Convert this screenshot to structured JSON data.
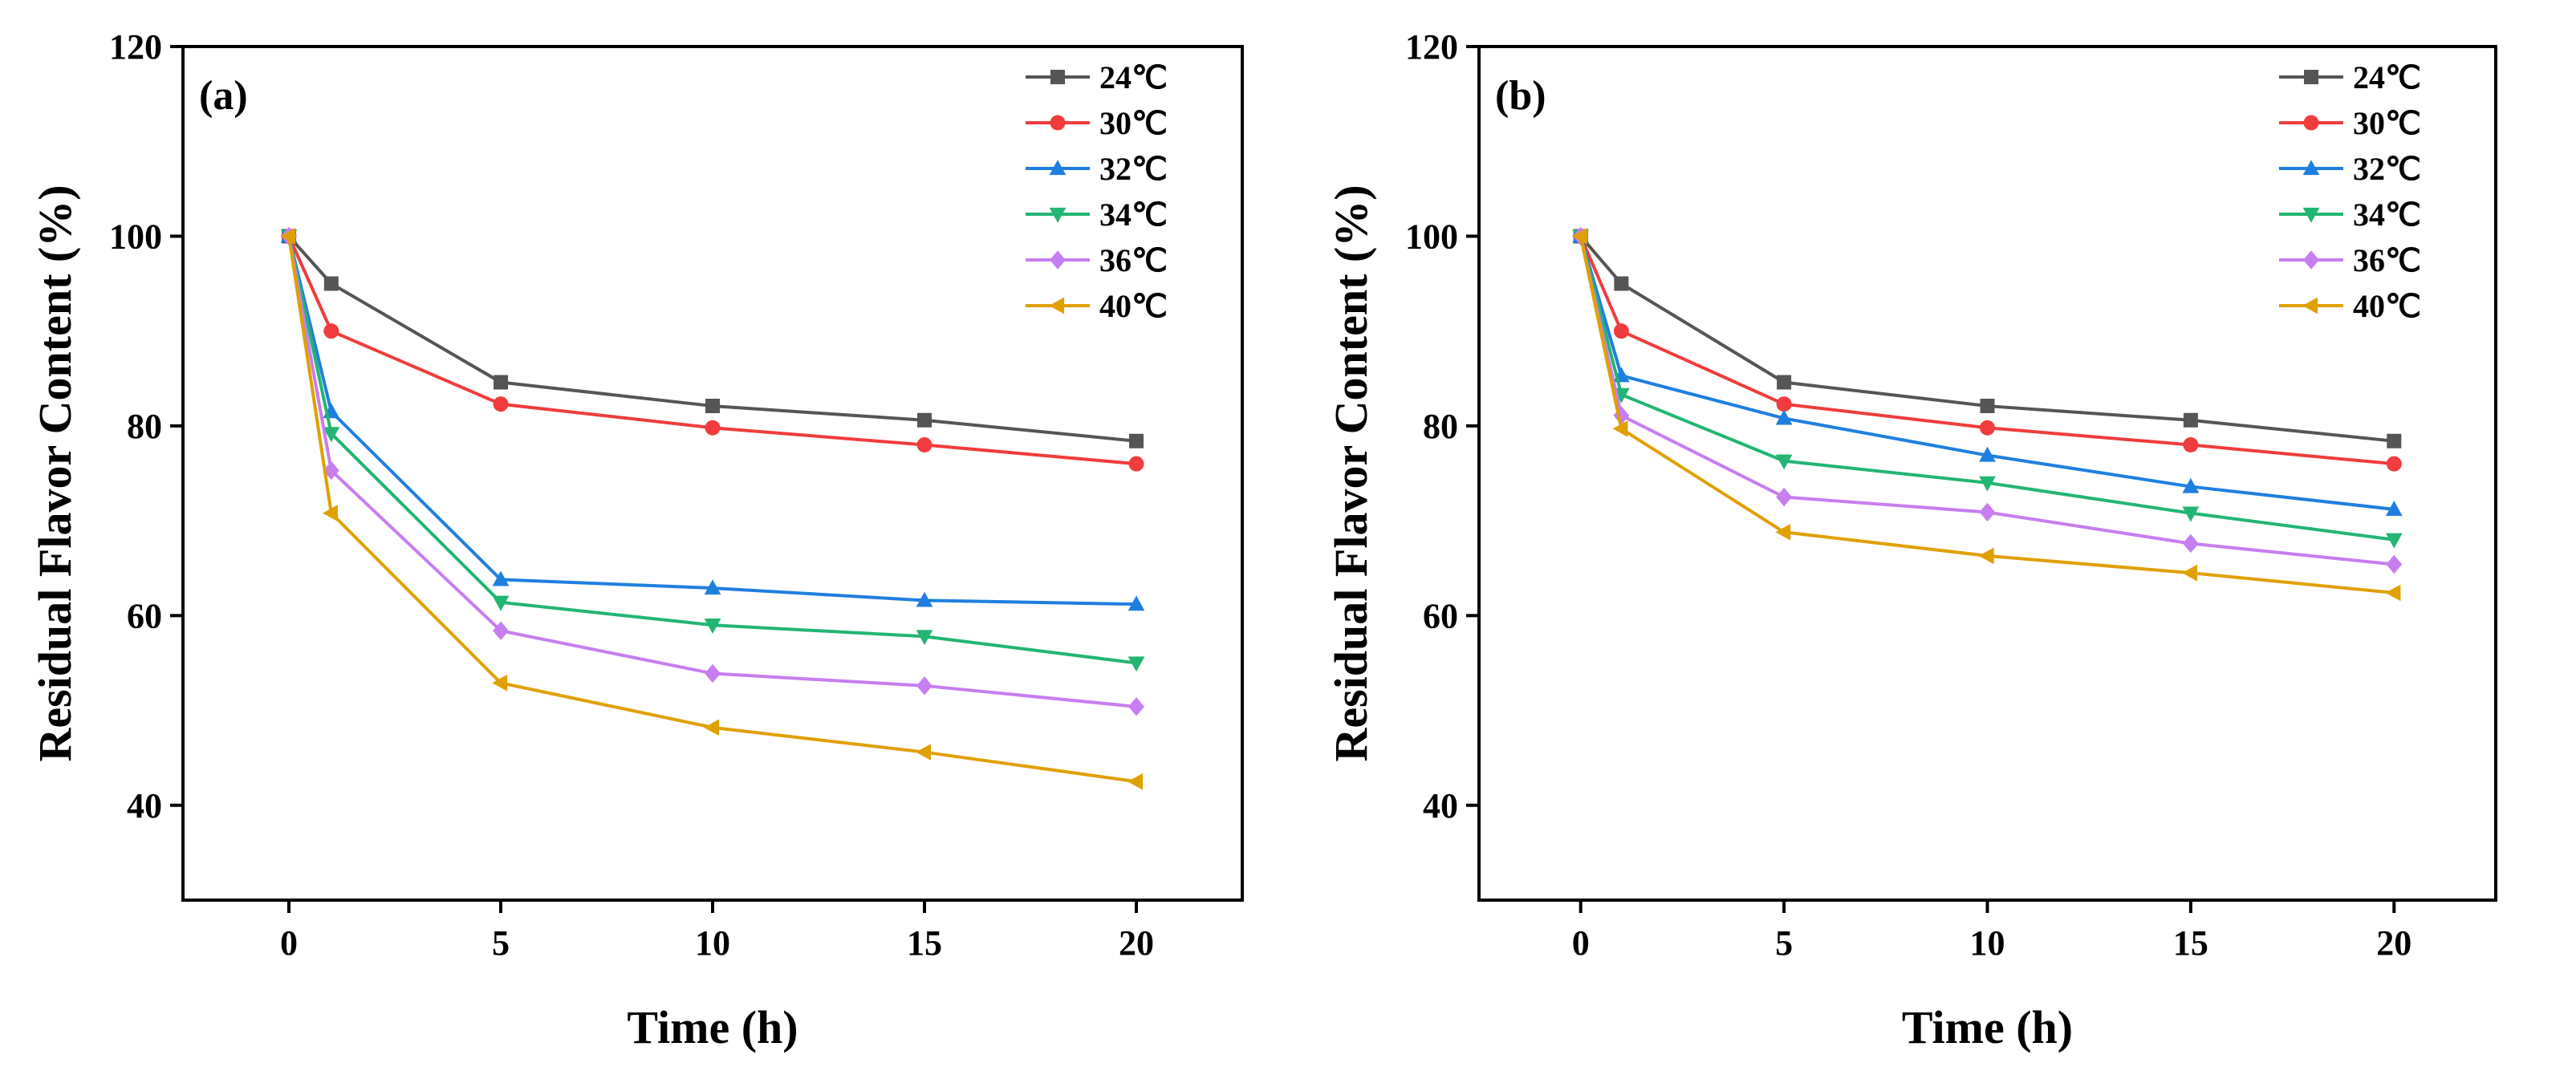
{
  "chart_data": [
    {
      "type": "line",
      "panel_label": "(a)",
      "xlabel": "Time (h)",
      "ylabel": "Residual Flavor Content (%)",
      "xlim": [
        -2.5,
        22.5
      ],
      "ylim": [
        30,
        120
      ],
      "xticks": [
        0,
        5,
        10,
        15,
        20
      ],
      "yticks": [
        40,
        60,
        80,
        100,
        120
      ],
      "x": [
        0,
        1,
        5,
        10,
        15,
        20
      ],
      "legend_position": "top-right",
      "series": [
        {
          "name": "24℃",
          "color": "#555555",
          "marker": "square",
          "values": [
            100,
            95.0,
            84.6,
            82.1,
            80.6,
            78.4
          ]
        },
        {
          "name": "30℃",
          "color": "#f03c3c",
          "marker": "circle",
          "values": [
            100,
            90.0,
            82.3,
            79.8,
            78.0,
            76.0
          ]
        },
        {
          "name": "32℃",
          "color": "#1f7fe0",
          "marker": "triangle-up",
          "values": [
            100,
            81.5,
            63.8,
            62.9,
            61.6,
            61.2
          ]
        },
        {
          "name": "34℃",
          "color": "#22b573",
          "marker": "triangle-down",
          "values": [
            100,
            79.2,
            61.4,
            59.0,
            57.8,
            55.0
          ]
        },
        {
          "name": "36℃",
          "color": "#c77ef0",
          "marker": "diamond",
          "values": [
            100,
            75.3,
            58.4,
            53.9,
            52.6,
            50.4
          ]
        },
        {
          "name": "40℃",
          "color": "#e0a000",
          "marker": "triangle-left",
          "values": [
            100,
            70.8,
            52.9,
            48.2,
            45.6,
            42.5
          ]
        }
      ]
    },
    {
      "type": "line",
      "panel_label": "(b)",
      "xlabel": "Time (h)",
      "ylabel": "Residual Flavor Content (%)",
      "xlim": [
        -2.5,
        22.5
      ],
      "ylim": [
        30,
        120
      ],
      "xticks": [
        0,
        5,
        10,
        15,
        20
      ],
      "yticks": [
        40,
        60,
        80,
        100,
        120
      ],
      "x": [
        0,
        1,
        5,
        10,
        15,
        20
      ],
      "legend_position": "top-right",
      "series": [
        {
          "name": "24℃",
          "color": "#555555",
          "marker": "square",
          "values": [
            100,
            95.0,
            84.6,
            82.1,
            80.6,
            78.4
          ]
        },
        {
          "name": "30℃",
          "color": "#f03c3c",
          "marker": "circle",
          "values": [
            100,
            90.0,
            82.3,
            79.8,
            78.0,
            76.0
          ]
        },
        {
          "name": "32℃",
          "color": "#1f7fe0",
          "marker": "triangle-up",
          "values": [
            100,
            85.3,
            80.8,
            76.9,
            73.6,
            71.2
          ]
        },
        {
          "name": "34℃",
          "color": "#22b573",
          "marker": "triangle-down",
          "values": [
            100,
            83.3,
            76.3,
            74.0,
            70.8,
            68.0
          ]
        },
        {
          "name": "36℃",
          "color": "#c77ef0",
          "marker": "diamond",
          "values": [
            100,
            81.1,
            72.5,
            70.9,
            67.6,
            65.4
          ]
        },
        {
          "name": "40℃",
          "color": "#e0a000",
          "marker": "triangle-left",
          "values": [
            100,
            79.7,
            68.8,
            66.3,
            64.5,
            62.4
          ]
        }
      ]
    }
  ]
}
